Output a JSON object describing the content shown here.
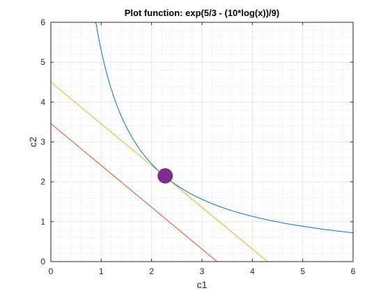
{
  "chart_data": {
    "type": "line",
    "title": "Plot function: exp(5/3 - (10*log(x))/9)",
    "xlabel": "c1",
    "ylabel": "c2",
    "xlim": [
      0,
      6
    ],
    "ylim": [
      0,
      6
    ],
    "xticks": [
      "0",
      "1",
      "2",
      "3",
      "4",
      "5",
      "6"
    ],
    "yticks": [
      "0",
      "1",
      "2",
      "3",
      "4",
      "5",
      "6"
    ],
    "grid": true,
    "minor_grid": true,
    "colors": {
      "curve": "#0072BD",
      "red_line": "#D95319",
      "yellow_line": "#EDB120",
      "point": "#7E2F8E",
      "grid": "#d9d9d9",
      "axes": "#262626"
    },
    "series": [
      {
        "type": "curve",
        "formula": "exp(5/3 - (10*log(x))/9)",
        "x_range": [
          0.88,
          6
        ]
      },
      {
        "type": "line",
        "x": [
          0,
          3.3
        ],
        "y": [
          3.46,
          0
        ]
      },
      {
        "type": "line",
        "x": [
          0,
          4.3
        ],
        "y": [
          4.5,
          0
        ]
      }
    ],
    "point": {
      "x": 2.27,
      "y": 2.15
    }
  }
}
